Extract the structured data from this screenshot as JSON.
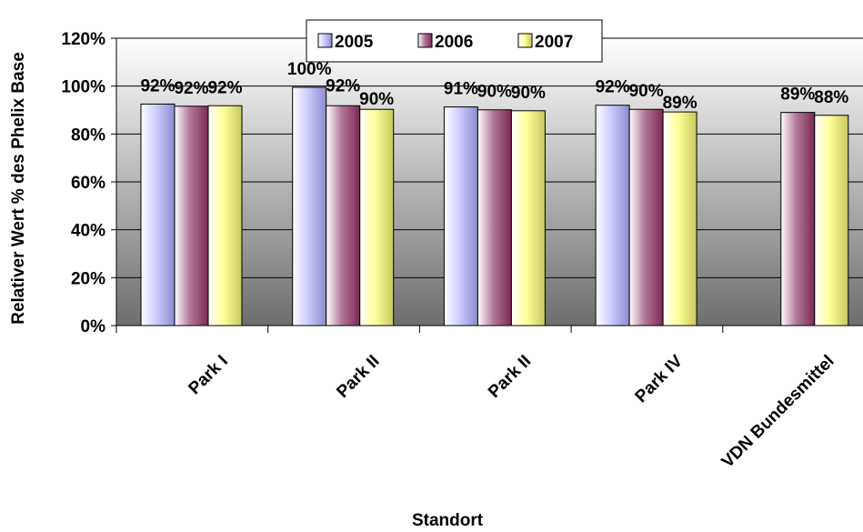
{
  "chart_data": {
    "type": "bar",
    "title": "",
    "xlabel": "Standort",
    "ylabel": "Relativer Wert % des Phelix Base",
    "ylim": [
      0,
      120
    ],
    "yticks": [
      "0%",
      "20%",
      "40%",
      "60%",
      "80%",
      "100%",
      "120%"
    ],
    "ytick_values": [
      0,
      20,
      40,
      60,
      80,
      100,
      120
    ],
    "categories": [
      "Park I",
      "Park II",
      "Park II",
      "Park IV",
      "VDN Bundesmittel"
    ],
    "series": [
      {
        "name": "2005",
        "values": [
          92.5,
          99.5,
          91.3,
          92,
          null
        ],
        "labels": [
          "92%",
          "100%",
          "91%",
          "92%",
          ""
        ]
      },
      {
        "name": "2006",
        "values": [
          91.6,
          91.8,
          90.1,
          90.3,
          89
        ],
        "labels": [
          "92%",
          "92%",
          "90%",
          "90%",
          "89%"
        ]
      },
      {
        "name": "2007",
        "values": [
          91.8,
          90.3,
          89.7,
          89.2,
          87.8
        ],
        "labels": [
          "92%",
          "90%",
          "90%",
          "89%",
          "88%"
        ]
      }
    ],
    "legend_position": "top-center",
    "grid": true,
    "colors": {
      "2005": "#ccccff",
      "2006": "#993366",
      "2007": "#ffff99"
    }
  }
}
